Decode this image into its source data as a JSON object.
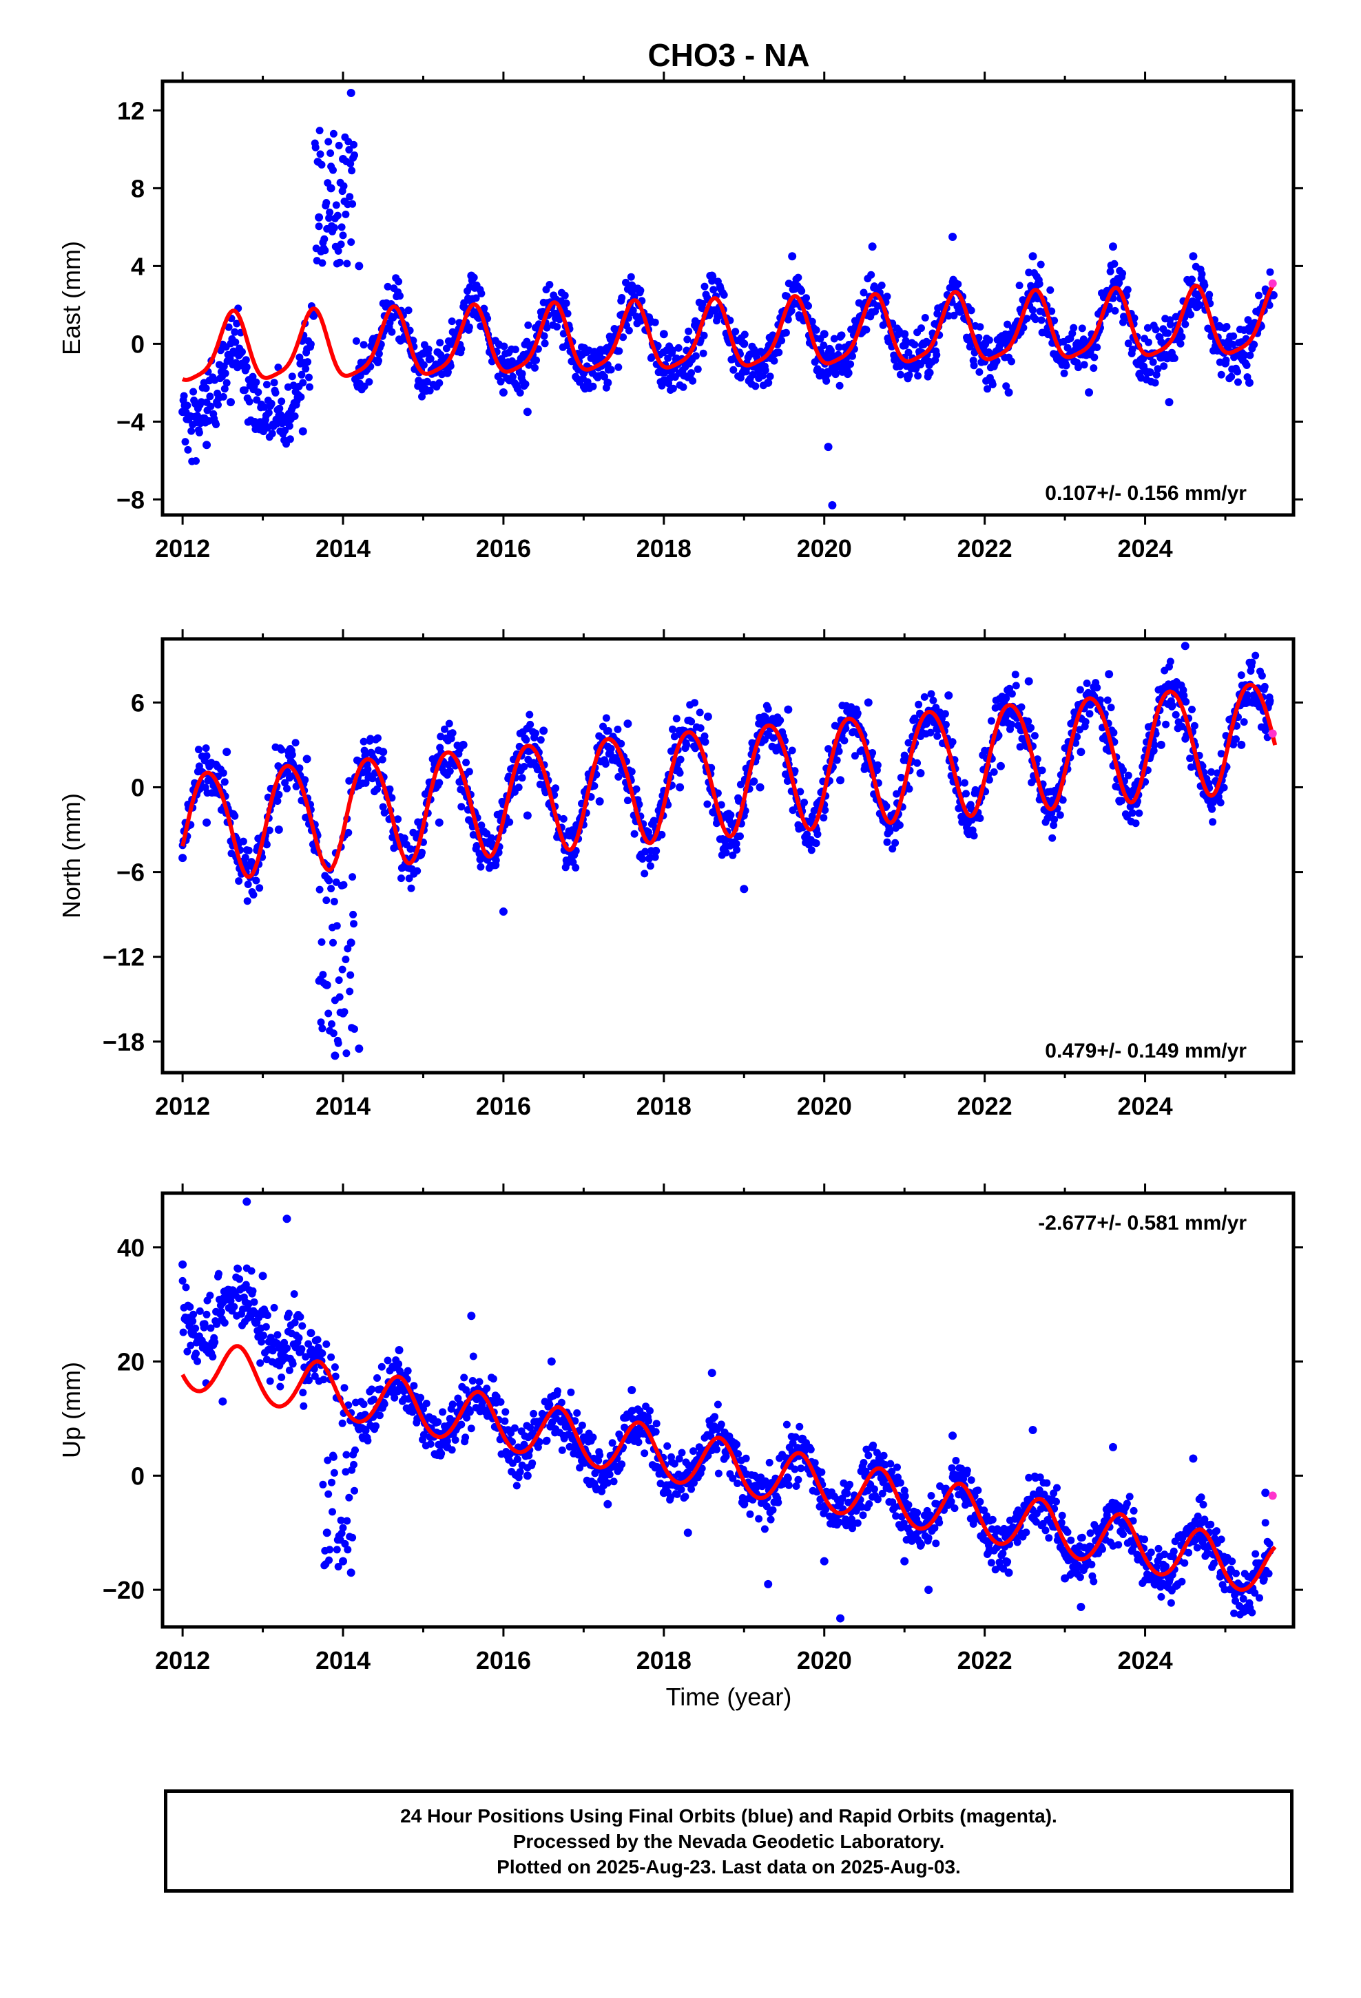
{
  "title": "CHO3 - NA",
  "xlabel": "Time (year)",
  "colors": {
    "final_orbits": "#0000ff",
    "rapid_orbits": "#ff33cc",
    "fit": "#ff0000",
    "axis": "#000000"
  },
  "footer": {
    "line1": "24 Hour Positions Using Final Orbits (blue) and Rapid Orbits (magenta).",
    "line2": "Processed by the Nevada Geodetic Laboratory.",
    "line3": "Plotted on 2025-Aug-23. Last data on 2025-Aug-03."
  },
  "chart_data": [
    {
      "type": "scatter",
      "title": "CHO3 - NA",
      "ylabel": "East (mm)",
      "xlabel": "",
      "xlim": [
        2011.75,
        2025.85
      ],
      "ylim": [
        -8.8,
        13.5
      ],
      "xticks": [
        2012,
        2014,
        2016,
        2018,
        2020,
        2022,
        2024
      ],
      "yticks": [
        -8,
        -4,
        0,
        4,
        8,
        12
      ],
      "rate_label": "0.107+/- 0.156 mm/yr",
      "rate_position": "bottom-right",
      "series": [
        {
          "kind": "points",
          "color": "#0000ff",
          "points": [
            [
              2012.0,
              -3.5
            ],
            [
              2012.3,
              -5.2
            ],
            [
              2012.6,
              -3.0
            ],
            [
              2012.9,
              -4.1
            ],
            [
              2013.2,
              -3.8
            ],
            [
              2013.5,
              -4.5
            ],
            [
              2013.7,
              6.5
            ],
            [
              2013.85,
              8.0
            ],
            [
              2014.0,
              9.5
            ],
            [
              2014.1,
              12.9
            ],
            [
              2014.2,
              4.0
            ],
            [
              2014.5,
              0.8
            ],
            [
              2014.7,
              1.5
            ],
            [
              2015.0,
              -0.5
            ],
            [
              2015.3,
              -1.5
            ],
            [
              2015.6,
              3.5
            ],
            [
              2016.0,
              -2.5
            ],
            [
              2016.3,
              -3.5
            ],
            [
              2016.6,
              2.0
            ],
            [
              2017.0,
              -1.5
            ],
            [
              2017.3,
              -2.0
            ],
            [
              2017.6,
              3.0
            ],
            [
              2018.0,
              0.5
            ],
            [
              2018.3,
              -1.0
            ],
            [
              2018.6,
              3.5
            ],
            [
              2019.0,
              0.0
            ],
            [
              2019.3,
              -2.0
            ],
            [
              2019.6,
              4.5
            ],
            [
              2020.0,
              0.5
            ],
            [
              2020.05,
              -5.3
            ],
            [
              2020.1,
              -8.3
            ],
            [
              2020.3,
              -1.5
            ],
            [
              2020.6,
              5.0
            ],
            [
              2021.0,
              0.5
            ],
            [
              2021.3,
              -1.5
            ],
            [
              2021.6,
              5.5
            ],
            [
              2022.0,
              0.0
            ],
            [
              2022.3,
              -2.5
            ],
            [
              2022.6,
              4.5
            ],
            [
              2023.0,
              -1.0
            ],
            [
              2023.3,
              -2.5
            ],
            [
              2023.6,
              5.0
            ],
            [
              2024.0,
              -0.5
            ],
            [
              2024.3,
              -3.0
            ],
            [
              2024.6,
              4.5
            ],
            [
              2025.0,
              -1.0
            ],
            [
              2025.3,
              -2.0
            ],
            [
              2025.6,
              2.5
            ]
          ]
        },
        {
          "kind": "points",
          "color": "#ff33cc",
          "points": [
            [
              2025.59,
              3.1
            ]
          ]
        },
        {
          "kind": "fit",
          "color": "#ff0000",
          "trend": 0.107,
          "ref_year": 2019.0,
          "offset": 0.3,
          "annual": 1.7,
          "annual_phase": 0.62,
          "semiannual": 0.4,
          "semiannual_phase": 0.15
        }
      ]
    },
    {
      "type": "scatter",
      "ylabel": "North (mm)",
      "xlabel": "",
      "xlim": [
        2011.75,
        2025.85
      ],
      "ylim": [
        -20.2,
        10.5
      ],
      "xticks": [
        2012,
        2014,
        2016,
        2018,
        2020,
        2022,
        2024
      ],
      "yticks": [
        -18,
        -12,
        -6,
        0,
        6
      ],
      "rate_label": "0.479+/- 0.149 mm/yr",
      "rate_position": "bottom-right",
      "series": [
        {
          "kind": "points",
          "color": "#0000ff",
          "points": [
            [
              2012.0,
              -5.0
            ],
            [
              2012.3,
              -2.5
            ],
            [
              2012.55,
              2.5
            ],
            [
              2012.9,
              -6.0
            ],
            [
              2013.2,
              -3.0
            ],
            [
              2013.55,
              2.0
            ],
            [
              2013.8,
              -14.0
            ],
            [
              2013.9,
              -19.0
            ],
            [
              2014.0,
              -16.0
            ],
            [
              2014.1,
              -11.0
            ],
            [
              2014.2,
              -18.5
            ],
            [
              2014.5,
              2.5
            ],
            [
              2014.9,
              -5.0
            ],
            [
              2015.2,
              -2.5
            ],
            [
              2015.5,
              3.0
            ],
            [
              2015.9,
              -5.5
            ],
            [
              2016.0,
              -8.8
            ],
            [
              2016.3,
              -2.0
            ],
            [
              2016.5,
              4.0
            ],
            [
              2016.9,
              -4.5
            ],
            [
              2017.2,
              -1.0
            ],
            [
              2017.55,
              4.5
            ],
            [
              2017.9,
              -4.5
            ],
            [
              2018.2,
              0.0
            ],
            [
              2018.55,
              5.0
            ],
            [
              2018.9,
              -4.0
            ],
            [
              2019.0,
              -7.2
            ],
            [
              2019.2,
              0.0
            ],
            [
              2019.55,
              5.5
            ],
            [
              2019.9,
              -3.0
            ],
            [
              2020.2,
              0.5
            ],
            [
              2020.55,
              6.0
            ],
            [
              2020.9,
              -2.5
            ],
            [
              2021.2,
              1.0
            ],
            [
              2021.55,
              6.5
            ],
            [
              2021.9,
              -2.0
            ],
            [
              2022.2,
              1.5
            ],
            [
              2022.55,
              7.5
            ],
            [
              2022.9,
              -1.5
            ],
            [
              2023.2,
              2.5
            ],
            [
              2023.55,
              8.0
            ],
            [
              2023.9,
              -1.0
            ],
            [
              2024.2,
              3.0
            ],
            [
              2024.5,
              10.0
            ],
            [
              2024.9,
              -0.5
            ],
            [
              2025.2,
              3.0
            ],
            [
              2025.55,
              6.0
            ]
          ]
        },
        {
          "kind": "points",
          "color": "#ff33cc",
          "points": [
            [
              2025.59,
              3.8
            ]
          ]
        },
        {
          "kind": "fit",
          "color": "#ff0000",
          "trend": 0.479,
          "ref_year": 2019.0,
          "offset": 0.7,
          "annual": 3.8,
          "annual_phase": 0.32,
          "semiannual": 0.3,
          "semiannual_phase": 0.1
        }
      ]
    },
    {
      "type": "scatter",
      "ylabel": "Up (mm)",
      "xlabel": "Time (year)",
      "xlim": [
        2011.75,
        2025.85
      ],
      "ylim": [
        -26.5,
        49.5
      ],
      "xticks": [
        2012,
        2014,
        2016,
        2018,
        2020,
        2022,
        2024
      ],
      "yticks": [
        -20,
        0,
        20,
        40
      ],
      "rate_label": "-2.677+/- 0.581 mm/yr",
      "rate_position": "top-right",
      "series": [
        {
          "kind": "points",
          "color": "#0000ff",
          "points": [
            [
              2012.0,
              37.0
            ],
            [
              2012.3,
              22.0
            ],
            [
              2012.5,
              13.0
            ],
            [
              2012.8,
              48.0
            ],
            [
              2013.0,
              35.0
            ],
            [
              2013.2,
              20.0
            ],
            [
              2013.3,
              45.0
            ],
            [
              2013.6,
              25.0
            ],
            [
              2013.8,
              -10.0
            ],
            [
              2014.0,
              -15.0
            ],
            [
              2014.1,
              -17.0
            ],
            [
              2014.3,
              10.0
            ],
            [
              2014.7,
              22.0
            ],
            [
              2015.0,
              10.0
            ],
            [
              2015.3,
              5.0
            ],
            [
              2015.6,
              28.0
            ],
            [
              2016.0,
              8.0
            ],
            [
              2016.3,
              0.0
            ],
            [
              2016.6,
              20.0
            ],
            [
              2017.0,
              3.0
            ],
            [
              2017.3,
              -5.0
            ],
            [
              2017.6,
              15.0
            ],
            [
              2018.0,
              -3.0
            ],
            [
              2018.3,
              -10.0
            ],
            [
              2018.6,
              18.0
            ],
            [
              2019.0,
              -5.0
            ],
            [
              2019.3,
              -19.0
            ],
            [
              2019.6,
              3.0
            ],
            [
              2020.0,
              -15.0
            ],
            [
              2020.2,
              -25.0
            ],
            [
              2020.6,
              5.0
            ],
            [
              2021.0,
              -15.0
            ],
            [
              2021.3,
              -20.0
            ],
            [
              2021.6,
              7.0
            ],
            [
              2022.0,
              -10.0
            ],
            [
              2022.3,
              -17.0
            ],
            [
              2022.6,
              8.0
            ],
            [
              2023.0,
              -18.0
            ],
            [
              2023.2,
              -23.0
            ],
            [
              2023.6,
              5.0
            ],
            [
              2024.0,
              -15.0
            ],
            [
              2024.3,
              -18.0
            ],
            [
              2024.6,
              3.0
            ],
            [
              2025.0,
              -15.0
            ],
            [
              2025.3,
              -20.0
            ],
            [
              2025.5,
              -3.0
            ]
          ]
        },
        {
          "kind": "points",
          "color": "#ff33cc",
          "points": [
            [
              2025.59,
              -3.5
            ]
          ]
        },
        {
          "kind": "fit",
          "color": "#ff0000",
          "trend": -2.677,
          "ref_year": 2019.0,
          "offset": 0.9,
          "annual": 4.6,
          "annual_phase": 0.69,
          "semiannual": 0.3,
          "semiannual_phase": 0.2
        }
      ]
    }
  ]
}
